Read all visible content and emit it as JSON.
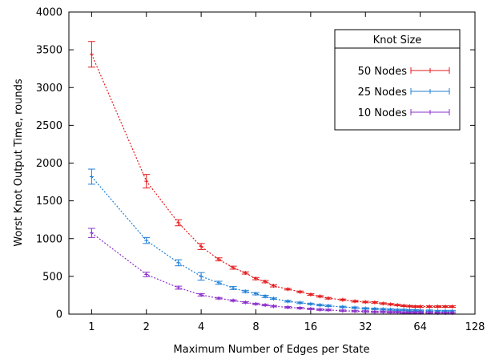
{
  "chart_data": {
    "type": "line",
    "title": "",
    "xlabel": "Maximum Number of Edges per State",
    "ylabel": "Worst Knot Output Time, rounds",
    "x_scale": "log2",
    "xlim": [
      0.75,
      128
    ],
    "ylim": [
      0,
      4000
    ],
    "x_ticks": [
      1,
      2,
      4,
      8,
      16,
      32,
      64,
      128
    ],
    "y_ticks": [
      0,
      500,
      1000,
      1500,
      2000,
      2500,
      3000,
      3500,
      4000
    ],
    "grid": false,
    "legend_title": "Knot Size",
    "legend_position": "top-right",
    "x": [
      1,
      2,
      3,
      4,
      5,
      6,
      7,
      8,
      9,
      10,
      12,
      14,
      16,
      18,
      20,
      24,
      28,
      32,
      36,
      40,
      44,
      48,
      52,
      56,
      60,
      64,
      72,
      80,
      88,
      96
    ],
    "series": [
      {
        "name": "50 Nodes",
        "color": "#e41a1c",
        "values": [
          3440,
          1760,
          1210,
          895,
          725,
          615,
          545,
          470,
          430,
          375,
          330,
          295,
          260,
          235,
          210,
          190,
          170,
          160,
          155,
          140,
          130,
          120,
          110,
          105,
          100,
          100,
          100,
          100,
          100,
          100
        ],
        "err": [
          170,
          90,
          40,
          40,
          20,
          20,
          15,
          15,
          15,
          15,
          10,
          10,
          10,
          10,
          10,
          10,
          10,
          10,
          10,
          10,
          10,
          10,
          10,
          10,
          10,
          10,
          10,
          10,
          10,
          10
        ]
      },
      {
        "name": "25 Nodes",
        "color": "#1f7fd6",
        "values": [
          1820,
          975,
          680,
          500,
          415,
          345,
          300,
          270,
          235,
          205,
          170,
          150,
          135,
          120,
          110,
          95,
          85,
          75,
          70,
          65,
          60,
          55,
          55,
          50,
          50,
          45,
          45,
          40,
          40,
          40
        ],
        "err": [
          100,
          40,
          40,
          50,
          20,
          20,
          15,
          15,
          15,
          10,
          10,
          10,
          10,
          10,
          10,
          10,
          10,
          10,
          10,
          10,
          10,
          10,
          10,
          10,
          10,
          10,
          10,
          10,
          10,
          10
        ]
      },
      {
        "name": "10 Nodes",
        "color": "#8b2fc9",
        "values": [
          1075,
          525,
          350,
          255,
          210,
          180,
          155,
          135,
          120,
          105,
          90,
          80,
          70,
          60,
          55,
          45,
          40,
          35,
          30,
          30,
          25,
          25,
          20,
          20,
          20,
          20,
          20,
          15,
          15,
          15
        ],
        "err": [
          60,
          30,
          20,
          15,
          10,
          10,
          10,
          10,
          10,
          10,
          10,
          10,
          10,
          10,
          10,
          10,
          10,
          10,
          10,
          10,
          10,
          10,
          10,
          10,
          10,
          10,
          10,
          10,
          10,
          10
        ]
      }
    ]
  }
}
